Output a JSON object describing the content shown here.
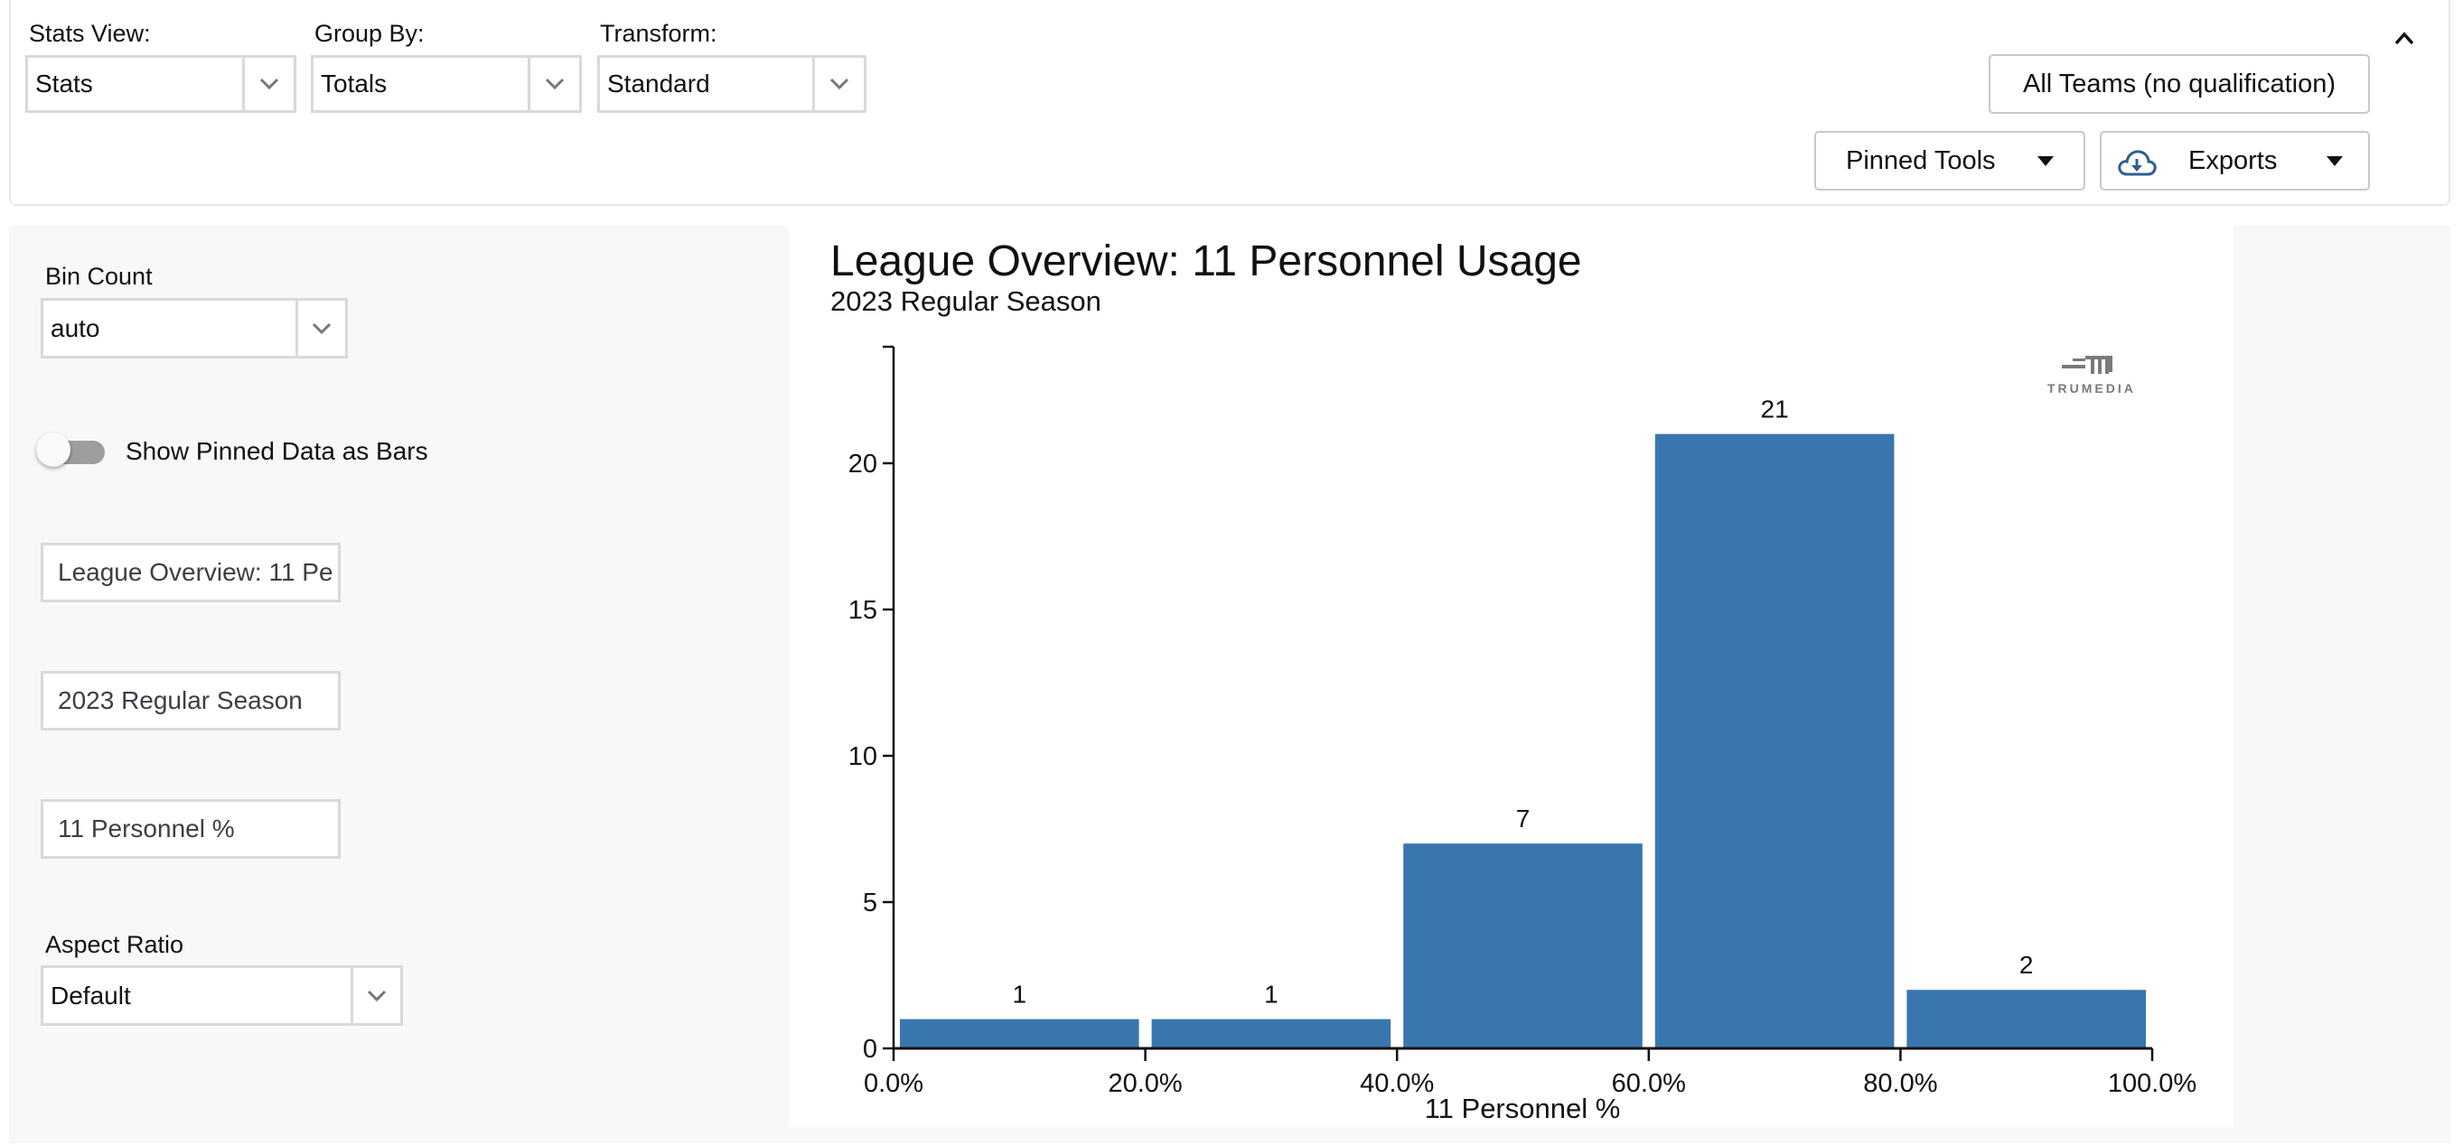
{
  "toolbar": {
    "stats_view": {
      "label": "Stats View:",
      "value": "Stats"
    },
    "group_by": {
      "label": "Group By:",
      "value": "Totals"
    },
    "transform": {
      "label": "Transform:",
      "value": "Standard"
    },
    "qualification_button": "All Teams (no qualification)",
    "pinned_tools_button": "Pinned Tools",
    "exports_button": "Exports",
    "collapse_icon": "chevron-up-icon"
  },
  "settings": {
    "bin_count": {
      "label": "Bin Count",
      "value": "auto"
    },
    "show_pinned_toggle": {
      "label": "Show Pinned Data as Bars",
      "checked": false
    },
    "title_input": "League Overview: 11 Pe",
    "subtitle_input": "2023 Regular Season",
    "xlabel_input": "11 Personnel %",
    "aspect_ratio": {
      "label": "Aspect Ratio",
      "value": "Default"
    }
  },
  "chart": {
    "title": "League Overview: 11 Personnel Usage",
    "subtitle": "2023 Regular Season",
    "logo_text": "TRUMEDIA",
    "bar_color": "#3a76ae"
  },
  "chart_data": {
    "type": "bar",
    "title": "League Overview: 11 Personnel Usage",
    "subtitle": "2023 Regular Season",
    "xlabel": "11 Personnel %",
    "ylabel": "",
    "categories": [
      "0.0%-20.0%",
      "20.0%-40.0%",
      "40.0%-60.0%",
      "60.0%-80.0%",
      "80.0%-100.0%"
    ],
    "bins": [
      [
        0,
        20
      ],
      [
        20,
        40
      ],
      [
        40,
        60
      ],
      [
        60,
        80
      ],
      [
        80,
        100
      ]
    ],
    "values": [
      1,
      1,
      7,
      21,
      2
    ],
    "x_ticks": [
      "0.0%",
      "20.0%",
      "40.0%",
      "60.0%",
      "80.0%",
      "100.0%"
    ],
    "y_ticks": [
      0,
      5,
      10,
      15,
      20
    ],
    "xlim": [
      0,
      100
    ],
    "ylim": [
      0,
      24
    ],
    "grid": false,
    "data_labels": true
  }
}
